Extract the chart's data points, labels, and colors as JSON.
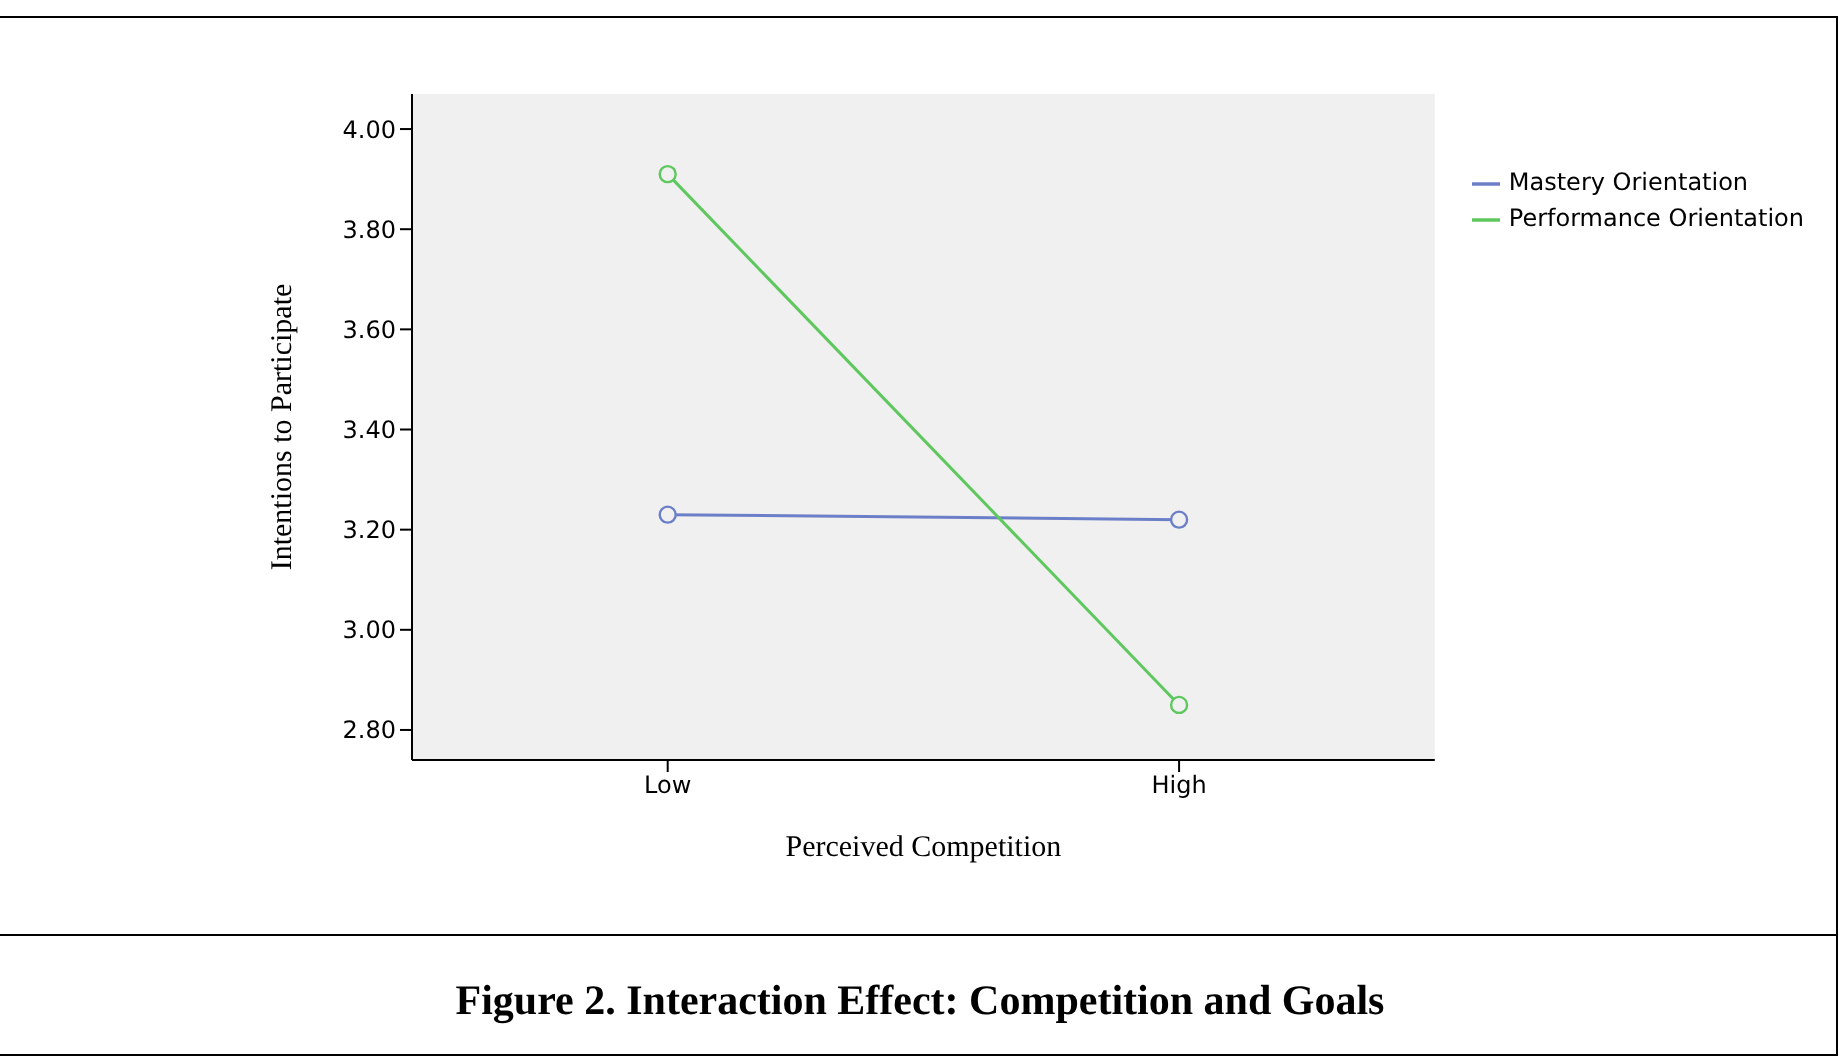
{
  "chart_data": {
    "type": "line",
    "title": "Figure 2. Interaction Effect: Competition and Goals",
    "xlabel": "Perceived Competition",
    "ylabel": "Intentions to Participate",
    "categories": [
      "Low",
      "High"
    ],
    "series": [
      {
        "name": "Mastery Orientation",
        "color": "#6b7fc8",
        "values": [
          3.23,
          3.22
        ]
      },
      {
        "name": "Performance Orientation",
        "color": "#5ec85e",
        "values": [
          3.91,
          2.85
        ]
      }
    ],
    "ylim": [
      2.74,
      4.07
    ],
    "yticks": [
      {
        "value": 2.8,
        "label": "2.80"
      },
      {
        "value": 3.0,
        "label": "3.00"
      },
      {
        "value": 3.2,
        "label": "3.20"
      },
      {
        "value": 3.4,
        "label": "3.40"
      },
      {
        "value": 3.6,
        "label": "3.60"
      },
      {
        "value": 3.8,
        "label": "3.80"
      },
      {
        "value": 4.0,
        "label": "4.00"
      }
    ],
    "grid": false,
    "legend": "top right",
    "marker": "circle",
    "line_style": "solid"
  }
}
